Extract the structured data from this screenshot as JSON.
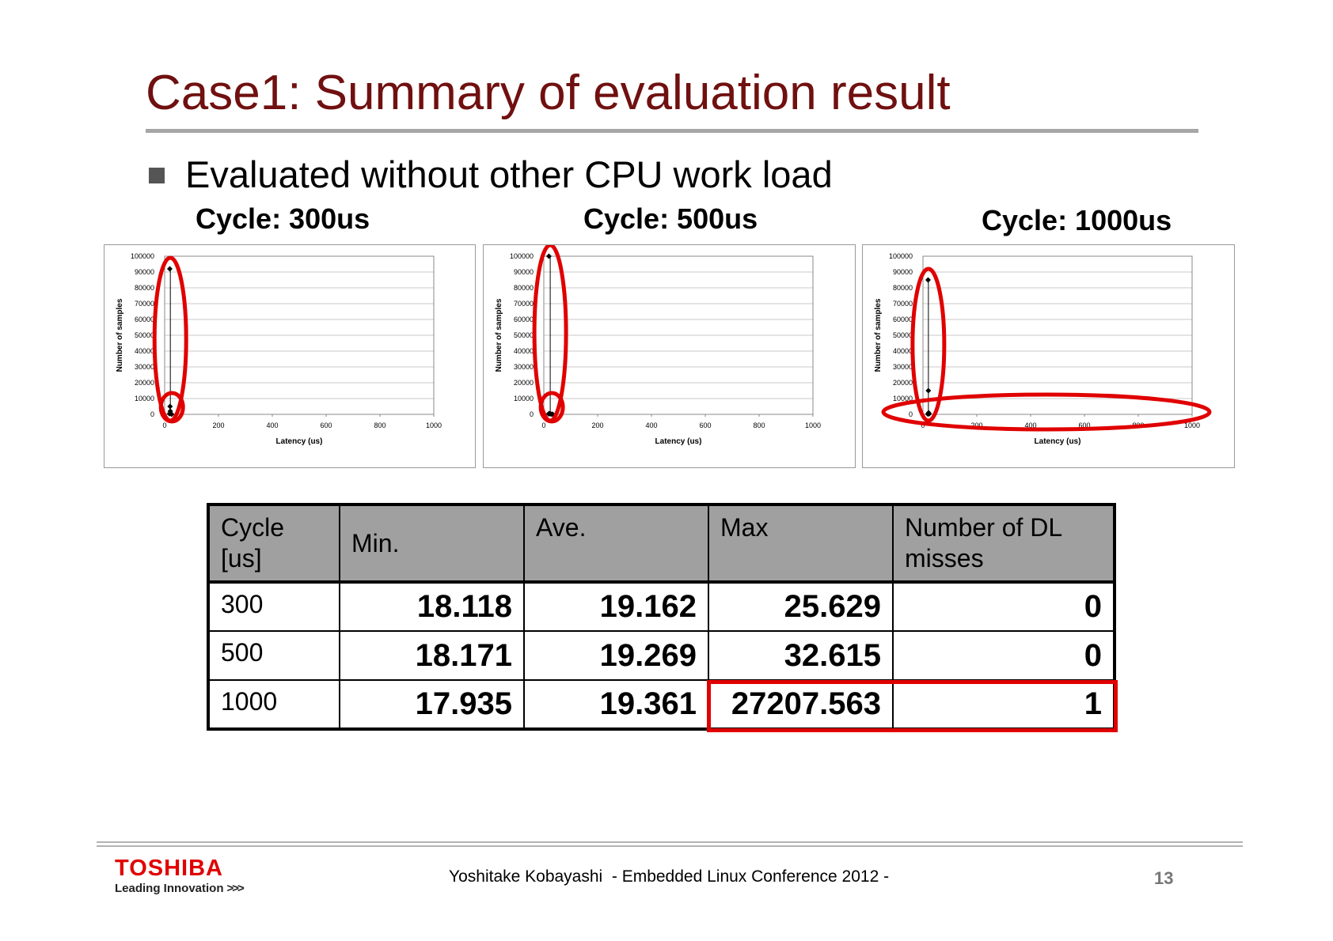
{
  "slide": {
    "title": "Case1: Summary of evaluation result",
    "bullet": "Evaluated without other CPU work load",
    "colors": {
      "title": "#701010",
      "highlight": "#e00000",
      "header_fill": "#a0a0a0"
    }
  },
  "chart_data": [
    {
      "type": "scatter",
      "title": "Cycle: 300us",
      "xlabel": "Latency (us)",
      "ylabel": "Number of samples",
      "xlim": [
        0,
        1000
      ],
      "ylim": [
        0,
        100000
      ],
      "x_ticks": [
        "0",
        "200",
        "400",
        "600",
        "800",
        "1000"
      ],
      "y_ticks": [
        "0",
        "10000",
        "20000",
        "30000",
        "40000",
        "50000",
        "60000",
        "70000",
        "80000",
        "90000",
        "100000"
      ],
      "grid": true,
      "points": [
        {
          "x": 18,
          "y": 400
        },
        {
          "x": 19,
          "y": 92000
        },
        {
          "x": 20,
          "y": 5000
        },
        {
          "x": 21,
          "y": 2000
        },
        {
          "x": 23,
          "y": 500
        },
        {
          "x": 26,
          "y": 50
        }
      ],
      "highlights": [
        "vertical-ellipse",
        "small-circle"
      ]
    },
    {
      "type": "scatter",
      "title": "Cycle: 500us",
      "xlabel": "Latency (us)",
      "ylabel": "Number of samples",
      "xlim": [
        0,
        1000
      ],
      "ylim": [
        0,
        100000
      ],
      "x_ticks": [
        "0",
        "200",
        "400",
        "600",
        "800",
        "1000"
      ],
      "y_ticks": [
        "0",
        "10000",
        "20000",
        "30000",
        "40000",
        "50000",
        "60000",
        "70000",
        "80000",
        "90000",
        "100000"
      ],
      "grid": true,
      "points": [
        {
          "x": 18,
          "y": 300
        },
        {
          "x": 19,
          "y": 100000
        },
        {
          "x": 20,
          "y": 500
        },
        {
          "x": 24,
          "y": 300
        },
        {
          "x": 29,
          "y": 100
        },
        {
          "x": 33,
          "y": 50
        }
      ],
      "highlights": [
        "vertical-ellipse",
        "small-circle"
      ]
    },
    {
      "type": "scatter",
      "title": "Cycle: 1000us",
      "xlabel": "Latency (us)",
      "ylabel": "Number of samples",
      "xlim": [
        0,
        1000
      ],
      "ylim": [
        0,
        100000
      ],
      "x_ticks": [
        "0",
        "200",
        "400",
        "600",
        "800",
        "1000"
      ],
      "y_ticks": [
        "0",
        "10000",
        "20000",
        "30000",
        "40000",
        "50000",
        "60000",
        "70000",
        "80000",
        "90000",
        "100000"
      ],
      "grid": true,
      "points": [
        {
          "x": 18,
          "y": 200
        },
        {
          "x": 19,
          "y": 85000
        },
        {
          "x": 20,
          "y": 15000
        },
        {
          "x": 21,
          "y": 1000
        },
        {
          "x": 23,
          "y": 300
        }
      ],
      "highlights": [
        "vertical-ellipse",
        "horizontal-ellipse"
      ]
    },
    {
      "type": "table",
      "columns": [
        "Cycle [us]",
        "Min.",
        "Ave.",
        "Max",
        "Number of DL misses"
      ],
      "rows": [
        [
          "300",
          "18.118",
          "19.162",
          "25.629",
          "0"
        ],
        [
          "500",
          "18.171",
          "19.269",
          "32.615",
          "0"
        ],
        [
          "1000",
          "17.935",
          "19.361",
          "27207.563",
          "1"
        ]
      ]
    }
  ],
  "footer": {
    "brand": "TOSHIBA",
    "tagline": "Leading Innovation",
    "tagline_arrows": ">>>",
    "text": "Yoshitake Kobayashi  - Embedded Linux Conference 2012 -",
    "page": "13"
  }
}
